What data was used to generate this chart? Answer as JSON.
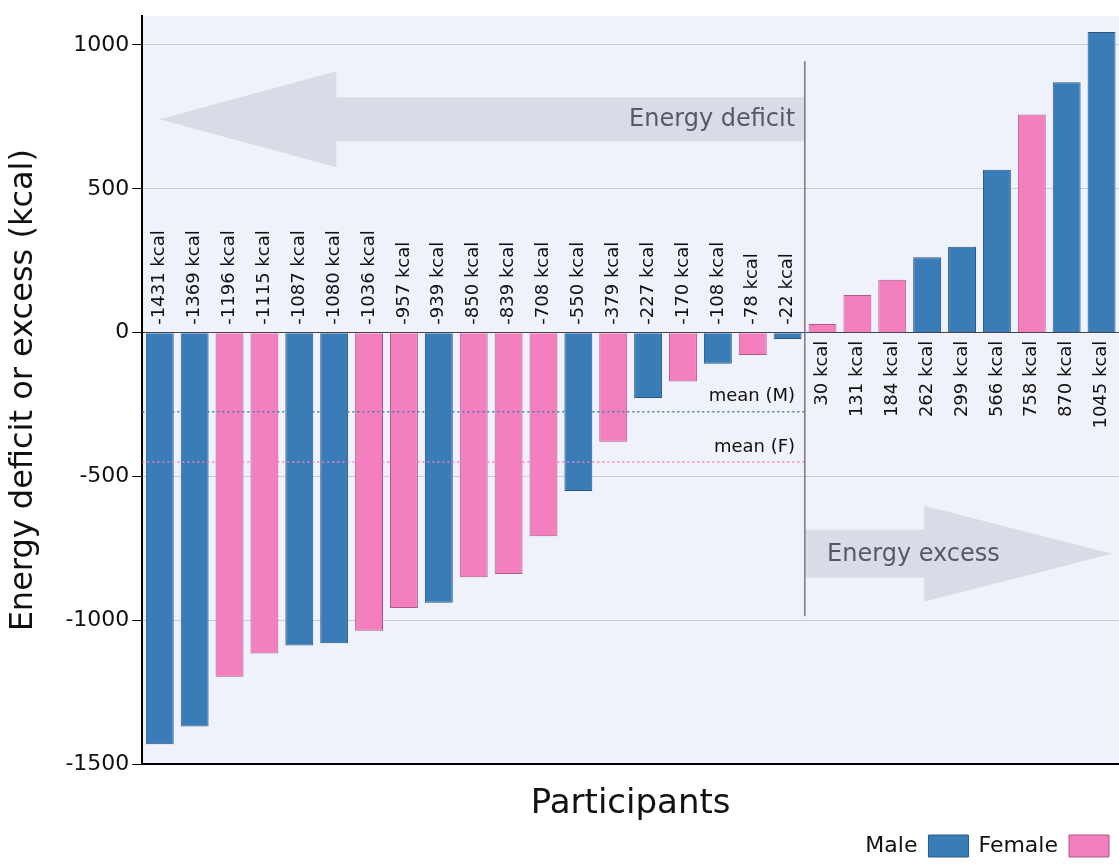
{
  "chart_data": {
    "type": "bar",
    "xlabel": "Participants",
    "ylabel": "Energy deficit or excess (kcal)",
    "categories": [
      null,
      null,
      null,
      null,
      null,
      null,
      null,
      null,
      null,
      null,
      null,
      null,
      null,
      null,
      null,
      null,
      null,
      null,
      null,
      null,
      null,
      null,
      null,
      null,
      null,
      null,
      null,
      null
    ],
    "series": [
      {
        "name": "Female",
        "color": "#f47fbf",
        "values": [
          null,
          null,
          -1196,
          -1115,
          null,
          null,
          -1036,
          -957,
          null,
          -850,
          -839,
          -708,
          null,
          -379,
          null,
          -170,
          null,
          -78,
          null,
          30,
          131,
          184,
          null,
          null,
          null,
          758,
          null,
          null
        ],
        "value_labels": [
          null,
          null,
          "-1196 kcal",
          "-1115 kcal",
          null,
          null,
          "-1036 kcal",
          "-957 kcal",
          null,
          "-850 kcal",
          "-839 kcal",
          "-708 kcal",
          null,
          "-379 kcal",
          null,
          "-170 kcal",
          null,
          "-78 kcal",
          null,
          "30 kcal",
          "131 kcal",
          "184 kcal",
          null,
          null,
          null,
          "758 kcal",
          null,
          null
        ]
      },
      {
        "name": "Male",
        "color": "#3a7cb8",
        "values": [
          -1431,
          -1369,
          null,
          null,
          -1087,
          -1080,
          null,
          null,
          -939,
          null,
          null,
          null,
          -550,
          null,
          -227,
          null,
          -108,
          null,
          -22,
          null,
          null,
          null,
          262,
          299,
          566,
          null,
          870,
          1045
        ],
        "value_labels": [
          "-1431 kcal",
          "-1369 kcal",
          null,
          null,
          "-1087 kcal",
          "-1080 kcal",
          null,
          null,
          "-939 kcal",
          null,
          null,
          null,
          "-550 kcal",
          null,
          "-227 kcal",
          null,
          "-108 kcal",
          null,
          "-22 kcal",
          null,
          null,
          null,
          "262 kcal",
          "299 kcal",
          "566 kcal",
          null,
          "870 kcal",
          "1045 kcal"
        ]
      }
    ],
    "ylim": [
      -1500,
      1100
    ],
    "yticks": [
      -1500,
      -1000,
      -500,
      0,
      500,
      1000
    ],
    "grid": "y",
    "legend": "bottom right",
    "tick_labels": "y",
    "ref_lines": [
      {
        "axis": "y",
        "value": -275,
        "label": "mean (M)",
        "color": "#3a7cb8",
        "line_style": "dotted"
      },
      {
        "axis": "y",
        "value": -450,
        "label": "mean (F)",
        "color": "#f47fbf",
        "line_style": "dotted"
      }
    ],
    "annotations": [
      "Energy deficit",
      "Energy excess"
    ]
  }
}
